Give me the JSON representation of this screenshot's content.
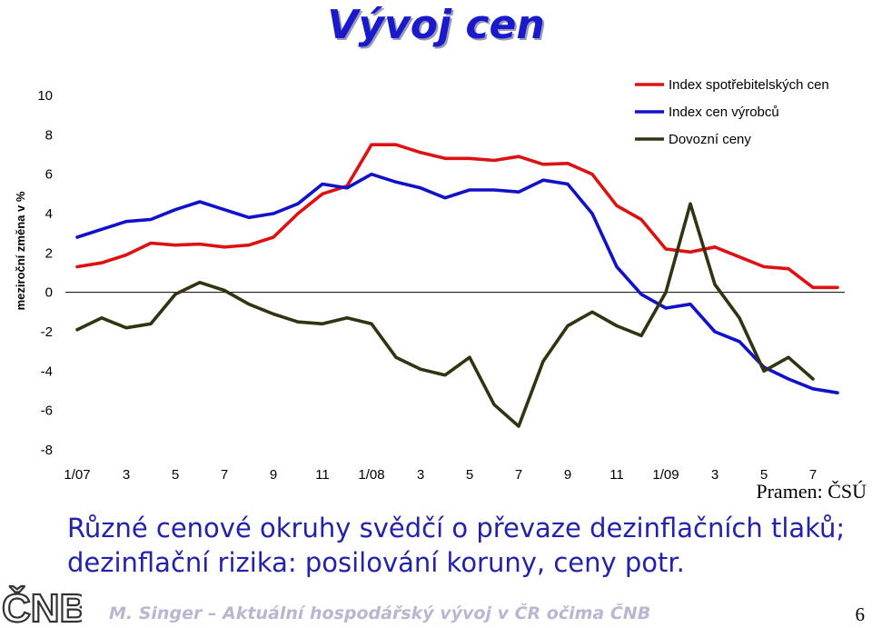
{
  "title": "Vývoj cen",
  "source": "Pramen: ČSÚ",
  "message": "Různé cenové okruhy svědčí o převaze dezinflačních tlaků; dezinflační rizika: posilování koruny, ceny potr.",
  "logo_text": "ČNB",
  "footer": "M. Singer – Aktuální hospodářský vývoj v ČR očima ČNB",
  "page_number": "6",
  "colors": {
    "title": "#1a1acc",
    "message": "#2222aa",
    "footer": "#b7b7d2"
  },
  "chart_data": {
    "type": "line",
    "title": "",
    "xlabel": "",
    "ylabel": "meziroční změna v %",
    "ylim": [
      -8,
      10
    ],
    "yticks": [
      10,
      8,
      6,
      4,
      2,
      0,
      -2,
      -4,
      -6,
      -8
    ],
    "x_tick_labels": [
      "1/07",
      "3",
      "5",
      "7",
      "9",
      "11",
      "1/08",
      "3",
      "5",
      "7",
      "9",
      "11",
      "1/09",
      "3",
      "5",
      "7"
    ],
    "months": [
      "1/07",
      "2/07",
      "3/07",
      "4/07",
      "5/07",
      "6/07",
      "7/07",
      "8/07",
      "9/07",
      "10/07",
      "11/07",
      "12/07",
      "1/08",
      "2/08",
      "3/08",
      "4/08",
      "5/08",
      "6/08",
      "7/08",
      "8/08",
      "9/08",
      "10/08",
      "11/08",
      "12/08",
      "1/09",
      "2/09",
      "3/09",
      "4/09",
      "5/09",
      "6/09",
      "7/09",
      "8/09"
    ],
    "legend_position": "top-right",
    "grid": false,
    "series": [
      {
        "name": "Index spotřebitelských cen",
        "color": "#dd1111",
        "values": [
          1.3,
          1.5,
          1.9,
          2.5,
          2.4,
          2.45,
          2.3,
          2.4,
          2.8,
          4.0,
          5.0,
          5.4,
          7.5,
          7.5,
          7.1,
          6.8,
          6.8,
          6.7,
          6.9,
          6.5,
          6.55,
          6.0,
          4.4,
          3.7,
          2.2,
          2.05,
          2.3,
          1.8,
          1.3,
          1.2,
          0.25,
          0.25
        ]
      },
      {
        "name": "Index cen výrobců",
        "color": "#1111cc",
        "values": [
          2.8,
          3.2,
          3.6,
          3.7,
          4.2,
          4.6,
          4.2,
          3.8,
          4.0,
          4.5,
          5.5,
          5.3,
          6.0,
          5.6,
          5.3,
          4.8,
          5.2,
          5.2,
          5.1,
          5.7,
          5.5,
          4.0,
          1.3,
          -0.1,
          -0.8,
          -0.6,
          -2.0,
          -2.5,
          -3.8,
          -4.4,
          -4.9,
          -5.1
        ]
      },
      {
        "name": "Dovozní ceny",
        "color": "#333311",
        "values": [
          -1.9,
          -1.3,
          -1.8,
          -1.6,
          -0.1,
          0.5,
          0.1,
          -0.6,
          -1.1,
          -1.5,
          -1.6,
          -1.3,
          -1.6,
          -3.3,
          -3.9,
          -4.2,
          -3.3,
          -5.7,
          -6.8,
          -3.5,
          -1.7,
          -1.0,
          -1.7,
          -2.2,
          0.0,
          4.5,
          0.4,
          -1.3,
          -4.0,
          -3.3,
          -4.4,
          null
        ]
      }
    ]
  }
}
